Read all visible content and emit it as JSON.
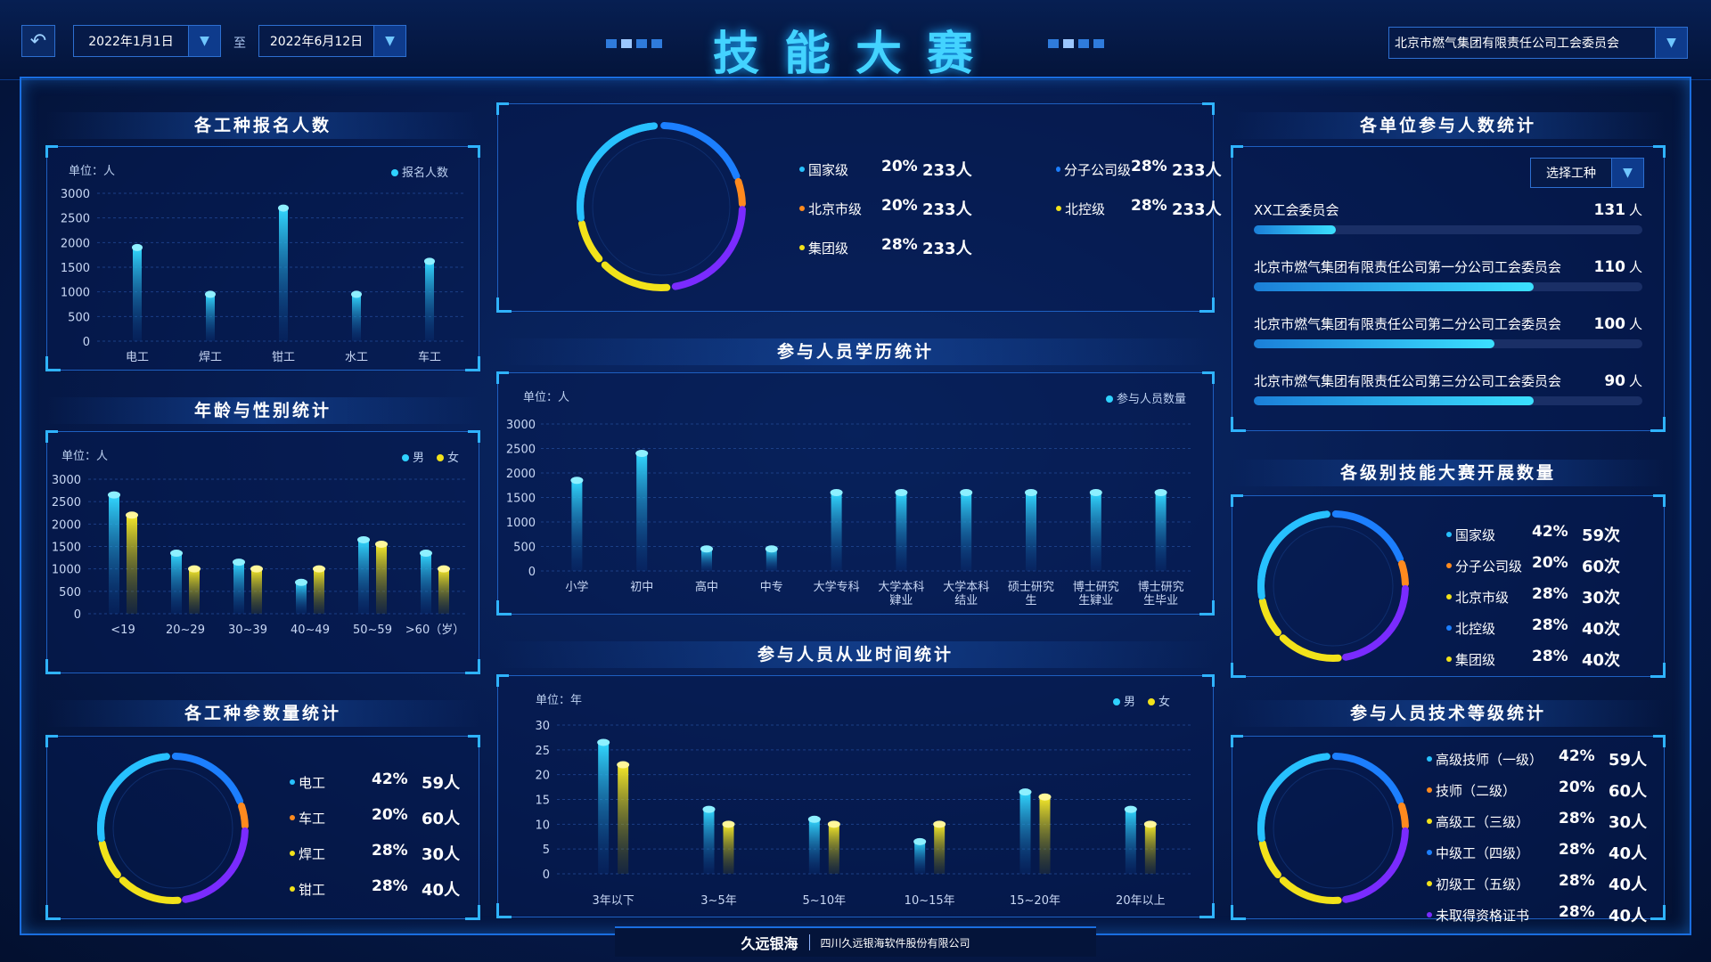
{
  "header": {
    "title": "技能大赛",
    "date_from": "2022年1月1日",
    "date_to": "2022年6月12日",
    "to_label": "至",
    "org": "北京市燃气集团有限责任公司工会委员会"
  },
  "colors": {
    "cyan": "#2fd2ff",
    "yellow": "#f2e21a",
    "orange": "#ff8a1e",
    "blue": "#1c7fff",
    "purple": "#7a2bff",
    "teal": "#27c1ff"
  },
  "icons": {
    "back": "back-arrow-icon",
    "dropdown": "caret-down-icon"
  },
  "panels": {
    "signup": {
      "title": "各工种报名人数",
      "unit": "单位：人",
      "legend": "报名人数"
    },
    "age": {
      "title": "年龄与性别统计",
      "unit": "单位：人",
      "legend_m": "男",
      "legend_f": "女"
    },
    "workerpie": {
      "title": "各工种参数量统计"
    },
    "edu": {
      "title": "参与人员学历统计",
      "unit": "单位：人",
      "legend": "参与人员数量"
    },
    "years": {
      "title": "参与人员从业时间统计",
      "unit": "单位：年",
      "legend_m": "男",
      "legend_f": "女"
    },
    "units": {
      "title": "各单位参与人数统计",
      "select": "选择工种"
    },
    "level": {
      "title": "各级别技能大赛开展数量"
    },
    "tech": {
      "title": "参与人员技术等级统计"
    }
  },
  "top_donut": {
    "items": [
      {
        "label": "国家级",
        "pct": "20%",
        "cnt": "233人",
        "color": "#27c1ff"
      },
      {
        "label": "分子公司级",
        "pct": "28%",
        "cnt": "233人",
        "color": "#1c7fff"
      },
      {
        "label": "北京市级",
        "pct": "20%",
        "cnt": "233人",
        "color": "#ff8a1e"
      },
      {
        "label": "北控级",
        "pct": "28%",
        "cnt": "233人",
        "color": "#f2e21a"
      },
      {
        "label": "集团级",
        "pct": "28%",
        "cnt": "233人",
        "color": "#f2e21a"
      }
    ]
  },
  "worker_donut": {
    "items": [
      {
        "label": "电工",
        "pct": "42%",
        "cnt": "59人",
        "color": "#27c1ff"
      },
      {
        "label": "车工",
        "pct": "20%",
        "cnt": "60人",
        "color": "#ff8a1e"
      },
      {
        "label": "焊工",
        "pct": "28%",
        "cnt": "30人",
        "color": "#f2e21a"
      },
      {
        "label": "钳工",
        "pct": "28%",
        "cnt": "40人",
        "color": "#f2e21a"
      }
    ]
  },
  "level_donut": {
    "items": [
      {
        "label": "国家级",
        "pct": "42%",
        "cnt": "59次",
        "color": "#27c1ff"
      },
      {
        "label": "分子公司级",
        "pct": "20%",
        "cnt": "60次",
        "color": "#ff8a1e"
      },
      {
        "label": "北京市级",
        "pct": "28%",
        "cnt": "30次",
        "color": "#f2e21a"
      },
      {
        "label": "北控级",
        "pct": "28%",
        "cnt": "40次",
        "color": "#1c7fff"
      },
      {
        "label": "集团级",
        "pct": "28%",
        "cnt": "40次",
        "color": "#f2e21a"
      }
    ]
  },
  "tech_donut": {
    "items": [
      {
        "label": "高级技师（一级）",
        "pct": "42%",
        "cnt": "59人",
        "color": "#27c1ff"
      },
      {
        "label": "技师（二级）",
        "pct": "20%",
        "cnt": "60人",
        "color": "#ff8a1e"
      },
      {
        "label": "高级工（三级）",
        "pct": "28%",
        "cnt": "30人",
        "color": "#f2e21a"
      },
      {
        "label": "中级工（四级）",
        "pct": "28%",
        "cnt": "40人",
        "color": "#1c7fff"
      },
      {
        "label": "初级工（五级）",
        "pct": "28%",
        "cnt": "40人",
        "color": "#f2e21a"
      },
      {
        "label": "未取得资格证书",
        "pct": "28%",
        "cnt": "40人",
        "color": "#7a2bff"
      }
    ]
  },
  "unit_list": [
    {
      "name": "XX工会委员会",
      "value": "131",
      "suffix": "人",
      "ratio": 0.21
    },
    {
      "name": "北京市燃气集团有限责任公司第一分公司工会委员会",
      "value": "110",
      "suffix": "人",
      "ratio": 0.72
    },
    {
      "name": "北京市燃气集团有限责任公司第二分公司工会委员会",
      "value": "100",
      "suffix": "人",
      "ratio": 0.62
    },
    {
      "name": "北京市燃气集团有限责任公司第三分公司工会委员会",
      "value": "90",
      "suffix": "人",
      "ratio": 0.72
    }
  ],
  "footer": {
    "logo": "久远银海",
    "company": "四川久远银海软件股份有限公司"
  },
  "chart_data": [
    {
      "id": "signup",
      "type": "bar",
      "categories": [
        "电工",
        "焊工",
        "钳工",
        "水工",
        "车工"
      ],
      "series": [
        {
          "name": "报名人数",
          "values": [
            1900,
            950,
            2700,
            950,
            1620
          ]
        }
      ],
      "yticks": [
        0,
        500,
        1000,
        1500,
        2000,
        2500,
        3000
      ],
      "ylim": [
        0,
        3000
      ]
    },
    {
      "id": "age",
      "type": "bar",
      "categories": [
        "<19",
        "20~29",
        "30~39",
        "40~49",
        "50~59",
        ">60（岁）"
      ],
      "series": [
        {
          "name": "男",
          "values": [
            2650,
            1350,
            1150,
            700,
            1650,
            1350
          ]
        },
        {
          "name": "女",
          "values": [
            2200,
            1000,
            1000,
            1000,
            1550,
            1000
          ]
        }
      ],
      "yticks": [
        0,
        500,
        1000,
        1500,
        2000,
        2500,
        3000
      ],
      "ylim": [
        0,
        3000
      ]
    },
    {
      "id": "edu",
      "type": "bar",
      "categories": [
        "小学",
        "初中",
        "高中",
        "中专",
        "大学专科",
        "大学本科\n肄业",
        "大学本科\n结业",
        "硕士研究\n生",
        "博士研究\n生肄业",
        "博士研究\n生毕业"
      ],
      "series": [
        {
          "name": "参与人员数量",
          "values": [
            1850,
            2400,
            450,
            450,
            1600,
            1600,
            1600,
            1600,
            1600,
            1600
          ]
        }
      ],
      "yticks": [
        0,
        500,
        1000,
        1500,
        2000,
        2500,
        3000
      ],
      "ylim": [
        0,
        3000
      ]
    },
    {
      "id": "years",
      "type": "bar",
      "categories": [
        "3年以下",
        "3~5年",
        "5~10年",
        "10~15年",
        "15~20年",
        "20年以上"
      ],
      "series": [
        {
          "name": "男",
          "values": [
            26.5,
            13,
            11,
            6.5,
            16.5,
            13
          ]
        },
        {
          "name": "女",
          "values": [
            22,
            10,
            10,
            10,
            15.5,
            10
          ]
        }
      ],
      "yticks": [
        0,
        5,
        10,
        15,
        20,
        25,
        30
      ],
      "ylim": [
        0,
        30
      ]
    }
  ]
}
